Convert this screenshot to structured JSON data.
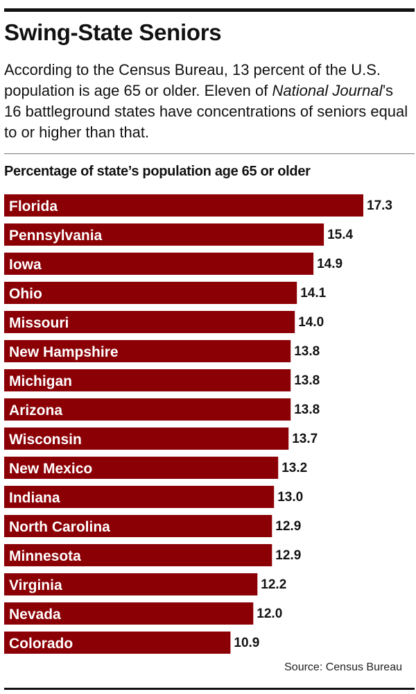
{
  "header": {
    "title": "Swing-State Seniors",
    "intro_part1": "According to the Census Bureau, 13 percent of the U.S. population is age 65 or older. Eleven of ",
    "intro_italic": "National Journal",
    "intro_part2": "’s 16 battleground states have concentrations of seniors equal to or higher than that."
  },
  "chart_title": "Percentage of state’s population age 65 or older",
  "source": "Source: Census Bureau",
  "colors": {
    "bar": "#8b0005",
    "text": "#111111"
  },
  "chart_data": {
    "type": "bar",
    "orientation": "horizontal",
    "title": "Percentage of state’s population age 65 or older",
    "xlim": [
      0,
      17.3
    ],
    "grid": false,
    "categories": [
      "Florida",
      "Pennsylvania",
      "Iowa",
      "Ohio",
      "Missouri",
      "New Hampshire",
      "Michigan",
      "Arizona",
      "Wisconsin",
      "New Mexico",
      "Indiana",
      "North Carolina",
      "Minnesota",
      "Virginia",
      "Nevada",
      "Colorado"
    ],
    "values": [
      17.3,
      15.4,
      14.9,
      14.1,
      14.0,
      13.8,
      13.8,
      13.8,
      13.7,
      13.2,
      13.0,
      12.9,
      12.9,
      12.2,
      12.0,
      10.9
    ],
    "value_labels": [
      "17.3",
      "15.4",
      "14.9",
      "14.1",
      "14.0",
      "13.8",
      "13.8",
      "13.8",
      "13.7",
      "13.2",
      "13.0",
      "12.9",
      "12.9",
      "12.2",
      "12.0",
      "10.9"
    ]
  }
}
